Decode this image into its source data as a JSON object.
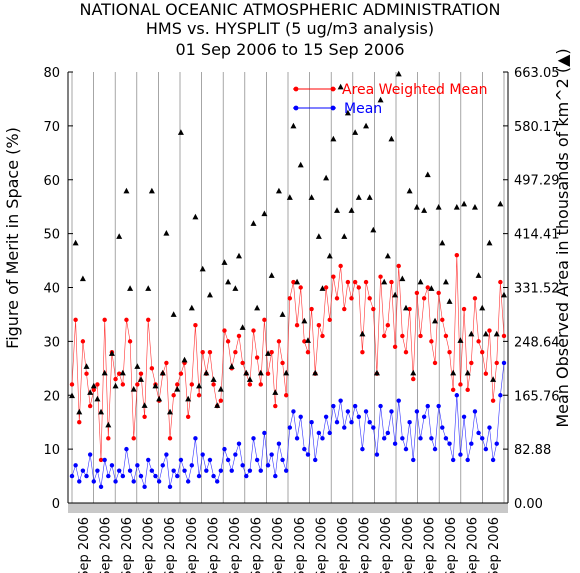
{
  "header": {
    "line1": "NATIONAL OCEANIC ATMOSPHERIC ADMINISTRATION",
    "line2": "HMS vs. HYSPLIT (5 ug/m3 analysis)",
    "line3": "01 Sep 2006 to 15 Sep 2006"
  },
  "chart_data": {
    "type": "line",
    "title": "NATIONAL OCEANIC ATMOSPHERIC ADMINISTRATION",
    "subtitle": "HMS vs. HYSPLIT (5 ug/m3 analysis) — 01 Sep 2006 to 15 Sep 2006",
    "ylabel": "Figure of Merit in Space (%)",
    "y2label": "Mean Observed Area in thousands of km^2 (▲)",
    "ylim": [
      0,
      80
    ],
    "y2lim": [
      0,
      663.05
    ],
    "yticks": [
      "0",
      "10",
      "20",
      "30",
      "40",
      "50",
      "60",
      "70",
      "80"
    ],
    "y2ticks": [
      "0.00",
      "82.88",
      "165.76",
      "248.64",
      "331.52",
      "414.41",
      "497.29",
      "580.17",
      "663.05"
    ],
    "xtick_labels": [
      "Sep 2006",
      "Sep 2006",
      "Sep 2006",
      "Sep 2006",
      "Sep 2006",
      "Sep 2006",
      "Sep 2006",
      "Sep 2006",
      "Sep 2006",
      "Sep 2006",
      "Sep 2006",
      "Sep 2006",
      "Sep 2006",
      "Sep 2006",
      "Sep 2006",
      "Sep 2006",
      "Sep 2006",
      "Sep 2006",
      "Sep 2006",
      "Sep 2006"
    ],
    "grid": false,
    "legend_position": "top-right",
    "colors": {
      "area_weighted_mean": "#ff0000",
      "mean": "#0000ff",
      "observed_area": "#000000",
      "vline": "#808080",
      "bottom_bar": "#c8c8c8"
    },
    "series": [
      {
        "name": "Area Weighted Mean",
        "color": "#ff0000",
        "values": [
          22,
          34,
          15,
          30,
          24,
          18,
          21,
          22,
          8,
          34,
          12,
          28,
          23,
          24,
          22,
          34,
          30,
          12,
          22,
          24,
          16,
          34,
          25,
          22,
          19,
          24,
          26,
          12,
          20,
          22,
          24,
          26,
          16,
          22,
          33,
          20,
          28,
          24,
          28,
          22,
          18,
          19,
          32,
          30,
          25,
          28,
          31,
          26,
          24,
          22,
          32,
          27,
          22,
          34,
          24,
          28,
          18,
          30,
          26,
          20,
          38,
          41,
          33,
          40,
          30,
          28,
          36,
          24,
          33,
          31,
          40,
          34,
          42,
          38,
          44,
          36,
          41,
          38,
          41,
          40,
          28,
          41,
          38,
          36,
          24,
          42,
          31,
          33,
          41,
          29,
          44,
          31,
          28,
          36,
          23,
          39,
          31,
          38,
          40,
          30,
          26,
          39,
          34,
          31,
          28,
          21,
          46,
          22,
          36,
          21,
          26,
          38,
          30,
          28,
          24,
          32,
          19,
          26,
          41,
          31
        ]
      },
      {
        "name": "Mean",
        "color": "#0000ff",
        "values": [
          5,
          7,
          4,
          6,
          5,
          9,
          4,
          6,
          3,
          8,
          5,
          7,
          4,
          6,
          5,
          10,
          6,
          4,
          7,
          5,
          3,
          8,
          6,
          5,
          4,
          7,
          9,
          3,
          6,
          5,
          8,
          6,
          4,
          7,
          12,
          5,
          9,
          6,
          8,
          5,
          4,
          6,
          10,
          8,
          6,
          9,
          11,
          7,
          5,
          6,
          12,
          8,
          6,
          13,
          7,
          9,
          5,
          11,
          8,
          6,
          14,
          17,
          12,
          16,
          10,
          9,
          15,
          8,
          13,
          12,
          16,
          13,
          18,
          15,
          19,
          14,
          17,
          15,
          18,
          16,
          10,
          17,
          15,
          14,
          9,
          18,
          12,
          13,
          17,
          11,
          19,
          12,
          10,
          15,
          8,
          17,
          12,
          16,
          18,
          12,
          10,
          18,
          14,
          12,
          11,
          8,
          20,
          9,
          16,
          8,
          11,
          17,
          13,
          12,
          10,
          14,
          8,
          11,
          20,
          26
        ]
      },
      {
        "name": "Observed Area",
        "axis": "right",
        "marker": "triangle",
        "color": "#000000",
        "values": [
          165,
          400,
          140,
          345,
          210,
          170,
          180,
          160,
          140,
          200,
          120,
          230,
          180,
          410,
          200,
          480,
          330,
          175,
          210,
          190,
          150,
          330,
          480,
          180,
          160,
          200,
          415,
          140,
          290,
          175,
          570,
          220,
          160,
          300,
          440,
          180,
          360,
          200,
          320,
          190,
          150,
          175,
          370,
          340,
          210,
          330,
          380,
          270,
          200,
          190,
          430,
          300,
          200,
          445,
          230,
          350,
          170,
          480,
          290,
          200,
          470,
          580,
          340,
          520,
          280,
          250,
          470,
          200,
          410,
          330,
          500,
          380,
          560,
          450,
          640,
          410,
          600,
          450,
          570,
          470,
          260,
          580,
          470,
          420,
          200,
          620,
          340,
          380,
          560,
          320,
          660,
          345,
          300,
          480,
          200,
          455,
          340,
          450,
          505,
          330,
          280,
          455,
          400,
          340,
          310,
          200,
          455,
          250,
          460,
          200,
          260,
          455,
          350,
          300,
          260,
          400,
          190,
          260,
          460,
          320
        ]
      }
    ]
  }
}
